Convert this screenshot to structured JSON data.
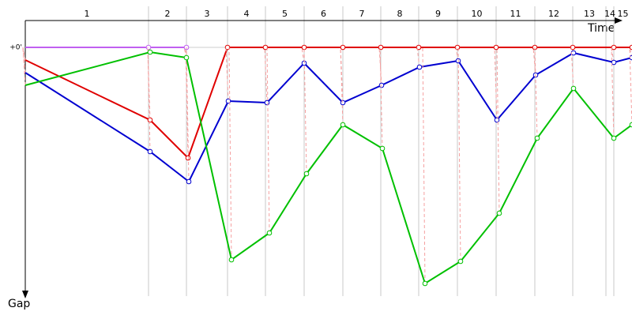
{
  "chart_data": {
    "type": "line",
    "x_label": "Time",
    "y_label": "Gap",
    "categories": [
      "1",
      "2",
      "3",
      "4",
      "5",
      "6",
      "7",
      "8",
      "9",
      "10",
      "11",
      "12",
      "13",
      "14",
      "15"
    ],
    "lap_starts": [
      0,
      156,
      204,
      256,
      304,
      353,
      402,
      450,
      498,
      547,
      596,
      645,
      693,
      735,
      745,
      768
    ],
    "xlim": [
      0,
      768
    ],
    "ylim": [
      0,
      315
    ],
    "yticks": [
      {
        "value": 0,
        "label": "+0'"
      }
    ],
    "series": [
      {
        "color": "#c060f0",
        "x": [
          0,
          156,
          204
        ],
        "values": [
          0,
          0,
          0
        ]
      },
      {
        "color": "#e00000",
        "x": [
          0,
          158,
          206,
          256,
          304,
          353,
          402,
          450,
          498,
          547,
          596,
          645,
          693,
          745,
          768
        ],
        "values": [
          16,
          92,
          140,
          0,
          0,
          0,
          0,
          0,
          0,
          0,
          0,
          0,
          0,
          0,
          0
        ]
      },
      {
        "color": "#0000d0",
        "x": [
          0,
          158,
          207,
          257,
          306,
          353,
          402,
          451,
          499,
          548,
          597,
          646,
          694,
          745,
          768
        ],
        "values": [
          32,
          132,
          170,
          68,
          70,
          20,
          70,
          48,
          25,
          17,
          92,
          35,
          7,
          19,
          13
        ]
      },
      {
        "color": "#00c000",
        "x": [
          0,
          158,
          204,
          261,
          309,
          356,
          402,
          452,
          506,
          551,
          600,
          648,
          694,
          745,
          768
        ],
        "values": [
          48,
          6,
          13,
          269,
          235,
          160,
          98,
          128,
          299,
          271,
          210,
          115,
          52,
          115,
          98
        ]
      }
    ]
  }
}
